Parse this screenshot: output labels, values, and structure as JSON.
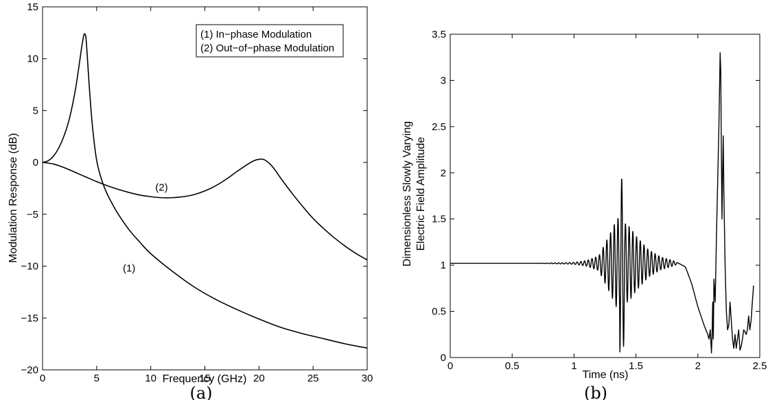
{
  "chart_data": [
    {
      "type": "line",
      "panel_label": "(a)",
      "xlabel": "Frequency (GHz)",
      "ylabel": "Modulation Response (dB)",
      "xlim": [
        0,
        30
      ],
      "ylim": [
        -20,
        15
      ],
      "xticks": [
        0,
        5,
        10,
        15,
        20,
        25,
        30
      ],
      "yticks": [
        -20,
        -15,
        -10,
        -5,
        0,
        5,
        10,
        15
      ],
      "grid": false,
      "legend": {
        "placement": "top-right",
        "entries": [
          "(1)  In−phase Modulation",
          "(2)  Out−of−phase Modulation"
        ]
      },
      "annotations": [
        {
          "text": "(1)",
          "x": 8,
          "y": -10.2
        },
        {
          "text": "(2)",
          "x": 11,
          "y": -2.4
        }
      ],
      "series": [
        {
          "x": [
            0,
            0.5,
            1,
            1.5,
            2,
            2.5,
            3,
            3.3,
            3.6,
            3.8,
            3.9,
            4.0,
            4.1,
            4.3,
            4.6,
            5,
            5.5,
            6,
            6.5,
            7,
            8,
            9,
            10,
            12,
            14,
            16,
            18,
            20,
            22,
            24,
            26,
            28,
            30
          ],
          "values": [
            0,
            0.15,
            0.6,
            1.4,
            2.6,
            4.3,
            6.8,
            8.8,
            11.0,
            12.2,
            12.4,
            12.1,
            10.8,
            7.6,
            3.6,
            0.2,
            -1.8,
            -3.1,
            -4.1,
            -5.0,
            -6.5,
            -7.7,
            -8.8,
            -10.5,
            -12.0,
            -13.2,
            -14.2,
            -15.1,
            -15.9,
            -16.5,
            -17.0,
            -17.5,
            -17.9
          ]
        },
        {
          "x": [
            0,
            1,
            2,
            3,
            4,
            5,
            6,
            7,
            8,
            9,
            10,
            11,
            12,
            13,
            14,
            15,
            16,
            17,
            18,
            19,
            19.5,
            20,
            20.4,
            20.8,
            21.2,
            21.6,
            22,
            23,
            24,
            25,
            26,
            27,
            28,
            29,
            30
          ],
          "values": [
            0,
            -0.15,
            -0.5,
            -0.95,
            -1.4,
            -1.85,
            -2.25,
            -2.6,
            -2.9,
            -3.15,
            -3.3,
            -3.4,
            -3.4,
            -3.3,
            -3.1,
            -2.75,
            -2.25,
            -1.6,
            -0.85,
            -0.15,
            0.15,
            0.3,
            0.3,
            0.05,
            -0.35,
            -0.9,
            -1.5,
            -2.9,
            -4.2,
            -5.4,
            -6.4,
            -7.3,
            -8.1,
            -8.8,
            -9.4
          ]
        }
      ]
    },
    {
      "type": "line",
      "panel_label": "(b)",
      "xlabel": "Time (ns)",
      "ylabel": [
        "Dimensionless Slowly Varying",
        "Electric Field Amplitude"
      ],
      "xlim": [
        0,
        2.5
      ],
      "ylim": [
        0,
        3.5
      ],
      "xticks": [
        0,
        0.5,
        1,
        1.5,
        2,
        2.5
      ],
      "yticks": [
        0,
        0.5,
        1,
        1.5,
        2,
        2.5,
        3,
        3.5
      ],
      "grid": false,
      "oscillation_period_ns": 0.03,
      "burst_envelope": {
        "x": [
          0.7,
          1.0,
          1.1,
          1.2,
          1.3,
          1.35,
          1.4,
          1.45,
          1.5,
          1.6,
          1.7,
          1.8,
          1.85
        ],
        "amplitude": [
          0.0,
          0.01,
          0.03,
          0.08,
          0.35,
          0.5,
          0.45,
          0.4,
          0.3,
          0.15,
          0.07,
          0.03,
          0.0
        ]
      },
      "drop_segment": {
        "x": [
          1.85,
          1.9,
          1.95,
          2.0,
          2.05,
          2.08
        ],
        "values": [
          1.02,
          0.98,
          0.8,
          0.55,
          0.35,
          0.25
        ]
      },
      "tail_segment": {
        "x": [
          2.08,
          2.09,
          2.1,
          2.11,
          2.115,
          2.12,
          2.125,
          2.13,
          2.14,
          2.15,
          2.16,
          2.17,
          2.18,
          2.185,
          2.19,
          2.195,
          2.2,
          2.205,
          2.21,
          2.22,
          2.23,
          2.24,
          2.25,
          2.26,
          2.27,
          2.28,
          2.29,
          2.3,
          2.31,
          2.32,
          2.33,
          2.34,
          2.35,
          2.36,
          2.37,
          2.38,
          2.39,
          2.4,
          2.41,
          2.42,
          2.43,
          2.44,
          2.45
        ],
        "values": [
          0.25,
          0.2,
          0.3,
          0.05,
          0.25,
          0.6,
          0.2,
          0.85,
          0.6,
          1.3,
          1.9,
          2.5,
          3.3,
          3.1,
          2.2,
          1.5,
          2.0,
          2.4,
          1.8,
          1.0,
          0.5,
          0.3,
          0.35,
          0.6,
          0.4,
          0.2,
          0.1,
          0.25,
          0.1,
          0.2,
          0.3,
          0.08,
          0.12,
          0.2,
          0.3,
          0.28,
          0.25,
          0.3,
          0.45,
          0.3,
          0.4,
          0.6,
          0.78
        ]
      },
      "baseline": 1.02
    }
  ]
}
